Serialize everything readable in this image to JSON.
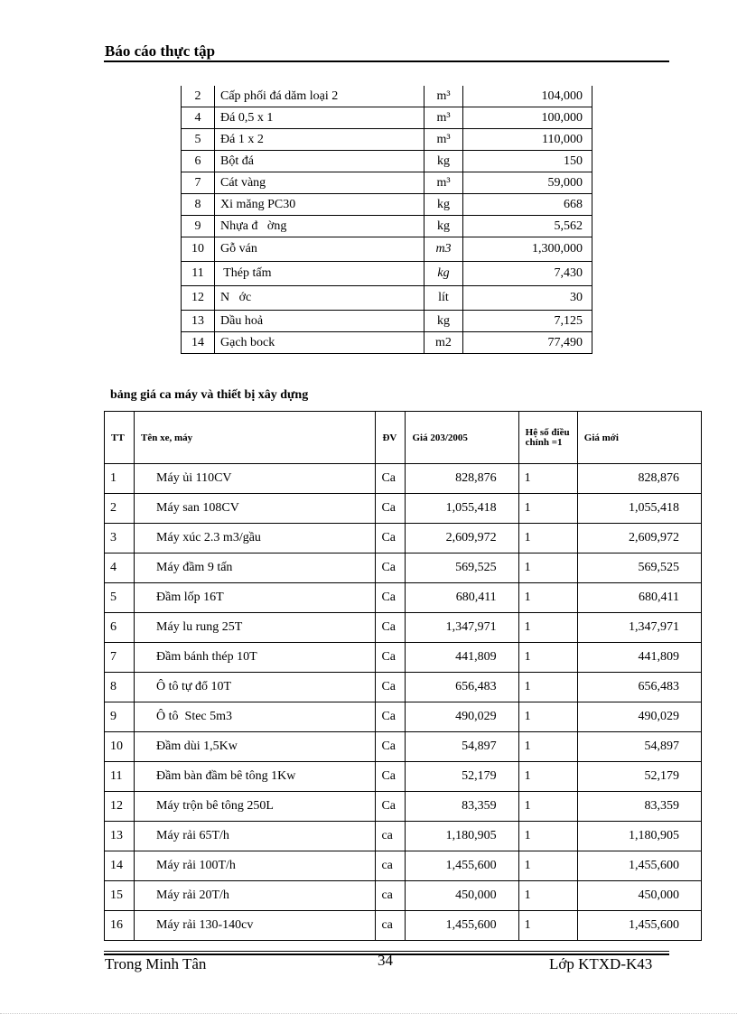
{
  "header": {
    "title": "Báo cáo thực tập"
  },
  "materials": {
    "rows": [
      [
        "2",
        "Cấp phối đá dăm loại 2",
        "m³",
        "104,000"
      ],
      [
        "4",
        "Đá 0,5 x 1",
        "m³",
        "100,000"
      ],
      [
        "5",
        "Đá 1 x 2",
        "m³",
        "110,000"
      ],
      [
        "6",
        "Bột đá",
        "kg",
        "150"
      ],
      [
        "7",
        "Cát vàng",
        "m³",
        "59,000"
      ],
      [
        "8",
        "Xi măng PC30",
        "kg",
        "668"
      ],
      [
        "9",
        "Nhựa đ   ờng",
        "kg",
        "5,562"
      ],
      [
        "10",
        "Gỗ ván",
        "m3",
        "1,300,000"
      ],
      [
        "11",
        " Thép tấm",
        "kg",
        "7,430"
      ],
      [
        "12",
        "N   ớc",
        "lít",
        "30"
      ],
      [
        "13",
        "Dầu hoả",
        "kg",
        "7,125"
      ],
      [
        "14",
        "Gạch bock",
        "m2",
        "77,490"
      ]
    ]
  },
  "machines": {
    "title": "bảng giá ca máy và thiết bị xây dựng",
    "headers": [
      "TT",
      "Tên xe, máy",
      "ĐV",
      "Giá 203/2005",
      "Hệ     số điều chỉnh =1",
      "Giá mới"
    ],
    "rows": [
      [
        "1",
        "Máy ủi 110CV",
        "Ca",
        "828,876",
        "1",
        "828,876"
      ],
      [
        "2",
        "Máy san 108CV",
        "Ca",
        "1,055,418",
        "1",
        "1,055,418"
      ],
      [
        "3",
        "Máy xúc 2.3 m3/gầu",
        "Ca",
        "2,609,972",
        "1",
        "2,609,972"
      ],
      [
        "4",
        "Máy đầm 9 tấn",
        "Ca",
        "569,525",
        "1",
        "569,525"
      ],
      [
        "5",
        "Đầm lốp 16T",
        "Ca",
        "680,411",
        "1",
        "680,411"
      ],
      [
        "6",
        "Máy lu rung 25T",
        "Ca",
        "1,347,971",
        "1",
        "1,347,971"
      ],
      [
        "7",
        "Đầm bánh thép 10T",
        "Ca",
        "441,809",
        "1",
        "441,809"
      ],
      [
        "8",
        "Ô tô tự đổ 10T",
        "Ca",
        "656,483",
        "1",
        "656,483"
      ],
      [
        "9",
        "Ô tô  Stec 5m3",
        "Ca",
        "490,029",
        "1",
        "490,029"
      ],
      [
        "10",
        "Đầm dùi 1,5Kw",
        "Ca",
        "54,897",
        "1",
        "54,897"
      ],
      [
        "11",
        "Đầm bàn đầm bê tông 1Kw",
        "Ca",
        "52,179",
        "1",
        "52,179"
      ],
      [
        "12",
        "Máy trộn bê tông 250L",
        "Ca",
        "83,359",
        "1",
        "83,359"
      ],
      [
        "13",
        "Máy rải 65T/h",
        "ca",
        "1,180,905",
        "1",
        "1,180,905"
      ],
      [
        "14",
        "Máy rải 100T/h",
        "ca",
        "1,455,600",
        "1",
        "1,455,600"
      ],
      [
        "15",
        "Máy rải 20T/h",
        "ca",
        "450,000",
        "1",
        "450,000"
      ],
      [
        "16",
        "Máy rải 130-140cv",
        "ca",
        "1,455,600",
        "1",
        "1,455,600"
      ]
    ]
  },
  "footer": {
    "author": "Trong   Minh Tân",
    "page": "34",
    "class": "Lớp KTXD-K43"
  }
}
